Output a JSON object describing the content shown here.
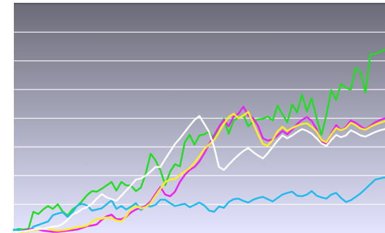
{
  "chart_data": {
    "type": "line",
    "title": "",
    "xlabel": "",
    "ylabel": "",
    "ylim": [
      0,
      8
    ],
    "grid": true,
    "legend": "none",
    "x": [
      0,
      1,
      2,
      3,
      4,
      5,
      6,
      7,
      8,
      9,
      10,
      11,
      12,
      13,
      14,
      15,
      16,
      17,
      18,
      19,
      20,
      21,
      22,
      23,
      24,
      25,
      26,
      27,
      28,
      29,
      30,
      31,
      32,
      33,
      34,
      35,
      36,
      37,
      38,
      39,
      40,
      41,
      42,
      43,
      44,
      45,
      46,
      47,
      48,
      49,
      50,
      51,
      52,
      53,
      54,
      55,
      56,
      57,
      58,
      59,
      60,
      61,
      62,
      63,
      64,
      65,
      66,
      67,
      68,
      69,
      70,
      71,
      72,
      73,
      74,
      75,
      76
    ],
    "colors": {
      "green": "#22dd22",
      "cyan": "#22bbee",
      "magenta": "#ee22ee",
      "yellow": "#ffee22",
      "white": "#ffffff",
      "background_top": "#6b6b78",
      "background_bottom": "#e4e4ff",
      "grid": "#ffffff"
    },
    "series": [
      {
        "color": "green",
        "values": [
          0.1,
          0.14,
          0.12,
          0.15,
          0.74,
          0.66,
          0.82,
          0.94,
          0.84,
          1.0,
          0.75,
          0.61,
          0.82,
          0.94,
          1.12,
          1.32,
          1.46,
          1.44,
          1.54,
          1.66,
          1.78,
          1.48,
          1.78,
          1.66,
          1.65,
          1.46,
          1.58,
          2.06,
          2.76,
          2.54,
          2.19,
          1.67,
          2.14,
          2.4,
          2.32,
          3.16,
          3.42,
          3.08,
          3.4,
          3.44,
          3.54,
          3.28,
          3.7,
          3.98,
          3.46,
          3.92,
          4.02,
          4.1,
          3.72,
          3.88,
          3.96,
          3.98,
          4.06,
          3.92,
          4.44,
          4.14,
          3.86,
          4.48,
          4.2,
          4.82,
          4.24,
          4.7,
          4.0,
          3.42,
          4.12,
          4.98,
          4.64,
          5.2,
          5.06,
          5.0,
          5.76,
          5.6,
          4.9,
          6.22,
          6.24,
          6.32,
          6.4
        ]
      },
      {
        "color": "cyan",
        "values": [
          0.12,
          0.1,
          0.08,
          0.06,
          0.22,
          0.28,
          0.34,
          0.4,
          0.62,
          0.68,
          0.72,
          0.56,
          0.72,
          0.96,
          1.02,
          0.96,
          0.78,
          0.82,
          0.86,
          1.0,
          1.14,
          0.84,
          0.94,
          0.82,
          0.92,
          1.04,
          0.8,
          0.96,
          0.92,
          0.98,
          1.16,
          1.16,
          1.04,
          0.94,
          0.98,
          1.02,
          0.9,
          0.98,
          1.06,
          0.96,
          0.78,
          0.74,
          0.92,
          0.88,
          1.08,
          1.18,
          1.2,
          1.12,
          1.06,
          1.16,
          1.22,
          1.26,
          1.18,
          1.1,
          1.22,
          1.34,
          1.4,
          1.44,
          1.3,
          1.28,
          1.34,
          1.46,
          1.3,
          1.24,
          1.2,
          1.34,
          1.4,
          1.22,
          1.08,
          1.14,
          1.26,
          1.38,
          1.54,
          1.7,
          1.86,
          1.9,
          1.94
        ]
      },
      {
        "color": "magenta",
        "values": [
          0.0,
          0.02,
          0.08,
          0.12,
          0.14,
          0.12,
          0.08,
          0.06,
          0.04,
          0.04,
          0.06,
          0.08,
          0.1,
          0.12,
          0.18,
          0.24,
          0.26,
          0.3,
          0.46,
          0.58,
          0.64,
          0.48,
          0.48,
          0.56,
          0.72,
          0.82,
          0.88,
          0.94,
          1.1,
          1.36,
          1.6,
          1.34,
          1.28,
          1.44,
          1.78,
          2.02,
          2.2,
          2.3,
          2.5,
          2.78,
          3.1,
          3.4,
          3.7,
          3.94,
          3.72,
          4.06,
          4.16,
          4.4,
          4.1,
          4.0,
          3.74,
          3.3,
          3.22,
          3.26,
          3.4,
          3.56,
          3.44,
          3.6,
          3.8,
          3.94,
          4.04,
          3.9,
          3.62,
          3.2,
          3.08,
          3.48,
          3.76,
          3.58,
          3.7,
          3.92,
          3.84,
          3.72,
          3.62,
          3.74,
          3.86,
          3.94,
          4.0
        ]
      },
      {
        "color": "yellow",
        "values": [
          0.0,
          0.02,
          0.04,
          0.06,
          0.1,
          0.12,
          0.16,
          0.16,
          0.1,
          0.08,
          0.1,
          0.12,
          0.16,
          0.2,
          0.22,
          0.26,
          0.38,
          0.48,
          0.5,
          0.54,
          0.52,
          0.44,
          0.4,
          0.58,
          0.84,
          0.94,
          0.86,
          0.9,
          1.04,
          1.3,
          1.54,
          1.78,
          1.86,
          1.88,
          2.02,
          2.14,
          2.26,
          2.44,
          2.68,
          2.92,
          3.08,
          3.24,
          3.52,
          3.8,
          4.04,
          4.16,
          4.0,
          4.1,
          4.22,
          3.84,
          3.44,
          3.1,
          3.04,
          3.24,
          3.54,
          3.7,
          3.56,
          3.66,
          3.74,
          3.8,
          3.82,
          3.7,
          3.54,
          3.24,
          3.16,
          3.44,
          3.66,
          3.58,
          3.66,
          3.84,
          3.76,
          3.64,
          3.6,
          3.7,
          3.78,
          3.84,
          3.9
        ]
      },
      {
        "color": "white",
        "values": [
          0.02,
          0.04,
          0.06,
          0.08,
          0.12,
          0.16,
          0.14,
          0.18,
          0.22,
          0.24,
          0.32,
          0.46,
          0.64,
          0.72,
          0.84,
          0.9,
          1.02,
          1.2,
          1.36,
          1.24,
          1.18,
          1.12,
          1.3,
          1.48,
          1.66,
          1.86,
          1.9,
          2.0,
          2.14,
          2.3,
          2.3,
          2.58,
          2.84,
          3.1,
          3.3,
          3.52,
          3.74,
          3.94,
          4.08,
          3.8,
          3.52,
          3.0,
          2.3,
          2.2,
          2.38,
          2.56,
          2.72,
          2.86,
          2.96,
          2.82,
          2.7,
          2.6,
          2.78,
          3.0,
          3.22,
          3.4,
          3.3,
          3.4,
          3.52,
          3.62,
          3.56,
          3.46,
          3.3,
          3.12,
          3.04,
          3.24,
          3.42,
          3.34,
          3.4,
          3.58,
          3.5,
          3.4,
          3.36,
          3.44,
          3.52,
          3.58,
          3.62
        ]
      }
    ]
  }
}
